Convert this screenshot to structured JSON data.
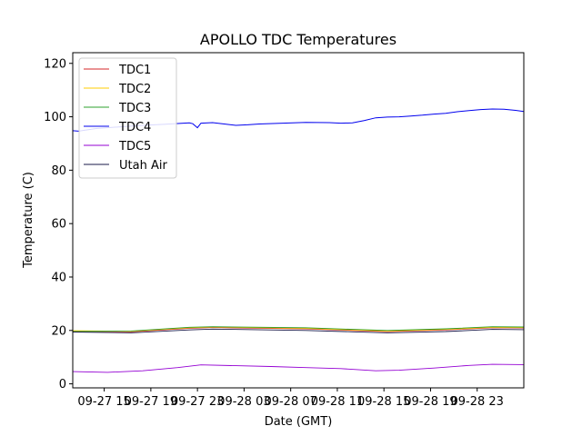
{
  "chart_data": {
    "type": "line",
    "title": "APOLLO TDC Temperatures",
    "xlabel": "Date (GMT)",
    "ylabel": "Temperature (C)",
    "ylim": [
      -1.5,
      124
    ],
    "xlim": [
      0,
      38.7
    ],
    "grid": false,
    "legend_position": "upper-left",
    "y_ticks": [
      0,
      20,
      40,
      60,
      80,
      100,
      120
    ],
    "x_ticks": [
      {
        "label": "09-27 15",
        "x": 2.7
      },
      {
        "label": "09-27 19",
        "x": 6.7
      },
      {
        "label": "09-27 23",
        "x": 10.7
      },
      {
        "label": "09-28 03",
        "x": 14.7
      },
      {
        "label": "09-28 07",
        "x": 18.7
      },
      {
        "label": "09-28 11",
        "x": 22.7
      },
      {
        "label": "09-28 15",
        "x": 26.7
      },
      {
        "label": "09-28 19",
        "x": 30.7
      },
      {
        "label": "09-28 23",
        "x": 34.7
      }
    ],
    "series": [
      {
        "name": "TDC1",
        "color": "#d62728",
        "x": [
          0,
          5,
          10,
          12,
          20,
          24,
          27,
          32,
          36,
          38.7
        ],
        "values": [
          19.8,
          19.5,
          20.8,
          21.1,
          20.6,
          20.0,
          19.6,
          20.2,
          21.0,
          20.9
        ]
      },
      {
        "name": "TDC2",
        "color": "#ffcc00",
        "x": [
          0,
          5,
          10,
          12,
          20,
          24,
          27,
          32,
          36,
          38.7
        ],
        "values": [
          19.9,
          19.7,
          21.0,
          21.3,
          20.8,
          20.2,
          19.8,
          20.4,
          21.2,
          21.1
        ]
      },
      {
        "name": "TDC3",
        "color": "#2ca02c",
        "x": [
          0,
          5,
          10,
          12,
          20,
          24,
          27,
          32,
          36,
          38.7
        ],
        "values": [
          19.6,
          19.8,
          21.2,
          21.4,
          21.0,
          20.4,
          20.0,
          20.6,
          21.4,
          21.3
        ]
      },
      {
        "name": "TDC4",
        "color": "#0000ee",
        "x": [
          0,
          0.5,
          2,
          4,
          6,
          8,
          10,
          10.3,
          10.7,
          11,
          12,
          13,
          14,
          15,
          16,
          18,
          20,
          22,
          23,
          24,
          25,
          26,
          27,
          28,
          29,
          30,
          31,
          32,
          33,
          34,
          35,
          36,
          37,
          38,
          38.7
        ],
        "values": [
          94.8,
          94.6,
          95.6,
          96.2,
          96.8,
          97.2,
          97.7,
          97.4,
          95.9,
          97.6,
          97.8,
          97.3,
          96.8,
          97.0,
          97.3,
          97.6,
          97.9,
          97.8,
          97.6,
          97.7,
          98.6,
          99.6,
          99.9,
          100.0,
          100.3,
          100.6,
          101.0,
          101.3,
          101.9,
          102.3,
          102.7,
          102.9,
          102.8,
          102.4,
          102.0
        ]
      },
      {
        "name": "TDC5",
        "color": "#9400d3",
        "x": [
          0,
          3,
          6,
          9,
          11,
          14,
          17,
          20,
          23,
          26,
          28,
          31,
          34,
          36,
          38.7
        ],
        "values": [
          4.6,
          4.3,
          4.9,
          6.1,
          7.1,
          6.8,
          6.5,
          6.1,
          5.7,
          4.9,
          5.1,
          5.9,
          6.9,
          7.3,
          7.2
        ]
      },
      {
        "name": "Utah Air",
        "color": "#1a1a4a",
        "x": [
          0,
          5,
          10,
          12,
          20,
          24,
          27,
          32,
          36,
          38.7
        ],
        "values": [
          19.4,
          19.1,
          20.2,
          20.5,
          20.0,
          19.5,
          19.1,
          19.6,
          20.4,
          20.3
        ]
      }
    ]
  }
}
